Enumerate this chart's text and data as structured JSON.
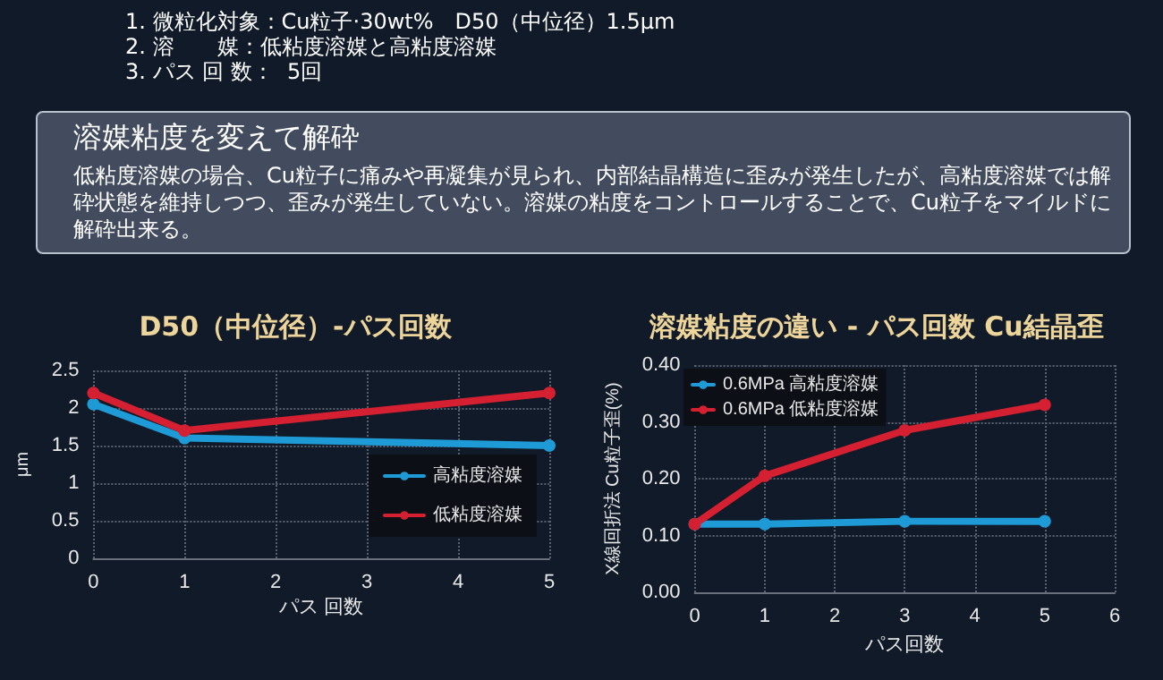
{
  "chart_data": [
    {
      "type": "other",
      "title": "溶媒粘度を変えて解砕",
      "subtitle": "低粘度溶媒の場合、Cu粒子に痛みや再凝集が見られ、内部結晶構造に歪みが発生したが、高粘度溶媒では解砕状態を維持しつつ、歪みが発生していない。溶媒の粘度をコントロールすることで、Cu粒子をマイルドに解砕出来る。",
      "annotations": [
        "1. 微粒化対象：Cu粒子·30wt%　D50（中位径）1.5μm",
        "2. 溶　　媒：低粘度溶媒と高粘度溶媒",
        "3. パス 回 数：  5回"
      ]
    },
    {
      "type": "line",
      "title": "D50（中位径）-パス回数",
      "xlabel": "パス 回数",
      "ylabel": "μm",
      "xlim": [
        0,
        5
      ],
      "xticks": [
        0,
        1,
        2,
        3,
        4,
        5
      ],
      "ylim": [
        0,
        2.5
      ],
      "yticks": [
        0,
        0.5,
        1,
        1.5,
        2,
        2.5
      ],
      "grid": true,
      "legend": "bottom right",
      "marker": "circle",
      "line_style": "solid",
      "series": [
        {
          "name": "高粘度溶媒",
          "color": "#1e9bd7",
          "x": [
            0,
            1,
            5
          ],
          "values": [
            2.05,
            1.6,
            1.5
          ]
        },
        {
          "name": "低粘度溶媒",
          "color": "#d42030",
          "x": [
            0,
            1,
            5
          ],
          "values": [
            2.2,
            1.7,
            2.2
          ]
        }
      ]
    },
    {
      "type": "line",
      "title": "溶媒粘度の違い - パス回数 Cu結晶歪",
      "xlabel": "パス回数",
      "ylabel": "X線回折法 Cu粒子歪(%)",
      "xlim": [
        0,
        6
      ],
      "xticks": [
        0,
        1,
        2,
        3,
        4,
        5,
        6
      ],
      "ylim": [
        0,
        0.4
      ],
      "yticks": [
        {
          "value": 0,
          "label": "0.00"
        },
        {
          "value": 0.1,
          "label": "0.10"
        },
        {
          "value": 0.2,
          "label": "0.20"
        },
        {
          "value": 0.3,
          "label": "0.30"
        },
        {
          "value": 0.4,
          "label": "0.40"
        }
      ],
      "grid": true,
      "legend": "top left",
      "marker": "circle",
      "line_style": "solid",
      "series": [
        {
          "name": "0.6MPa 高粘度溶媒",
          "color": "#1e9bd7",
          "x": [
            0,
            1,
            3,
            5
          ],
          "values": [
            0.12,
            0.12,
            0.125,
            0.125
          ]
        },
        {
          "name": "0.6MPa 低粘度溶媒",
          "color": "#d42030",
          "x": [
            0,
            1,
            3,
            5
          ],
          "values": [
            0.12,
            0.205,
            0.285,
            0.33
          ]
        }
      ]
    }
  ]
}
